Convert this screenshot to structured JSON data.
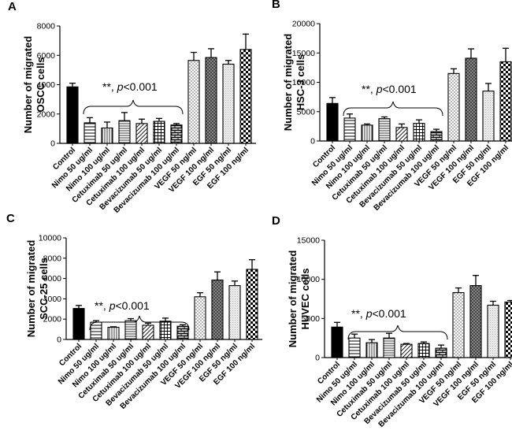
{
  "figure": {
    "categories": [
      "Control",
      "Nimo 50 ug/ml",
      "Nimo 100 ug/ml",
      "Cetuximab 50 ug/ml",
      "Cetuximab 100 ug/ml",
      "Bevacizumab 50 ug/ml",
      "Bevacizumab 100 ug/ml",
      "VEGF 50 ng/ml",
      "VEGF 100 ng/ml",
      "EGF 50 ng/ml",
      "EGF 100 ng/ml"
    ],
    "patterns": [
      "black",
      "hlines",
      "vlines",
      "hlines-dense",
      "diag-fwd",
      "grid",
      "bricks",
      "dots",
      "crosshatch",
      "light",
      "checker"
    ],
    "annotation": {
      "stars": "**, ",
      "p": "p",
      "rest": "<0.001"
    },
    "colors": {
      "ink": "#000000",
      "background": "#ffffff"
    }
  },
  "chart_data": [
    {
      "panel": "A",
      "type": "bar",
      "ylabel_line1": "Number of migrated",
      "ylabel_line2": "OSCC cells",
      "ylim": [
        0,
        8000
      ],
      "yticks": [
        0,
        2000,
        4000,
        6000,
        8000
      ],
      "values": [
        3850,
        1400,
        1050,
        1550,
        1350,
        1500,
        1250,
        5650,
        5850,
        5400,
        6400
      ],
      "errors": [
        250,
        350,
        400,
        550,
        300,
        200,
        100,
        550,
        600,
        250,
        1050
      ]
    },
    {
      "panel": "B",
      "type": "bar",
      "ylabel_line1": "Number of migrated",
      "ylabel_line2": "HSC-3 cells",
      "ylim": [
        0,
        20000
      ],
      "yticks": [
        0,
        5000,
        10000,
        15000,
        20000
      ],
      "values": [
        6400,
        3900,
        2700,
        3800,
        2300,
        3000,
        1600,
        11500,
        14100,
        8500,
        13500
      ],
      "errors": [
        1000,
        700,
        200,
        300,
        600,
        600,
        400,
        800,
        1600,
        1300,
        2300
      ]
    },
    {
      "panel": "C",
      "type": "bar",
      "ylabel_line1": "Number of migrated",
      "ylabel_line2": "SCC-25 cells",
      "ylim": [
        0,
        10000
      ],
      "yticks": [
        0,
        2000,
        4000,
        6000,
        8000,
        10000
      ],
      "values": [
        3050,
        1700,
        1200,
        1850,
        1400,
        1800,
        1300,
        4200,
        5850,
        5300,
        6900
      ],
      "errors": [
        300,
        150,
        50,
        200,
        200,
        300,
        150,
        400,
        800,
        450,
        950
      ]
    },
    {
      "panel": "D",
      "type": "bar",
      "ylabel_line1": "Number of migrated",
      "ylabel_line2": "HUVEC cells",
      "ylim": [
        0,
        15000
      ],
      "yticks": [
        0,
        5000,
        10000,
        15000
      ],
      "values": [
        3900,
        2500,
        1900,
        2500,
        1700,
        1800,
        1200,
        8300,
        9200,
        6700,
        7100
      ],
      "errors": [
        600,
        500,
        400,
        600,
        100,
        200,
        400,
        600,
        1300,
        500,
        200
      ]
    }
  ]
}
